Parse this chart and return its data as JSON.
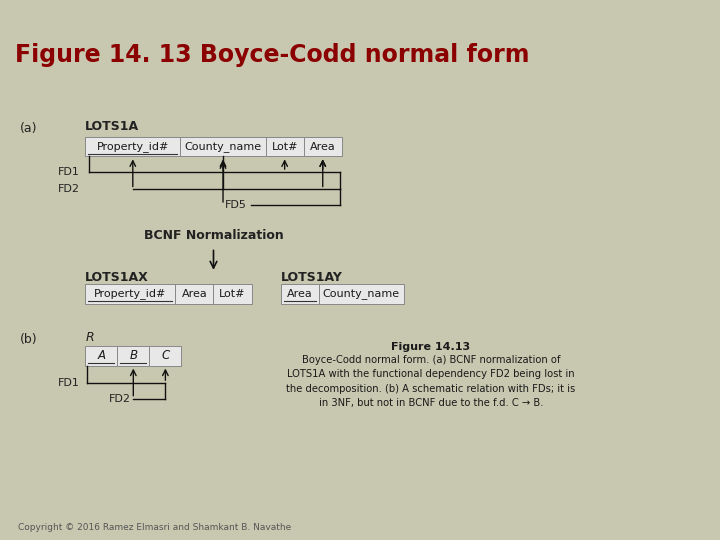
{
  "title": "Figure 14. 13 Boyce-Codd normal form",
  "title_bg": "#c8c8b0",
  "title_color": "#8b0000",
  "main_bg": "#ffffff",
  "fig_bg": "#c8c8b0",
  "section_a_label": "(a)",
  "lots1a_label": "LOTS1A",
  "cols_lots1a": [
    "Property_id#",
    "County_name",
    "Lot#",
    "Area"
  ],
  "fd1_label": "FD1",
  "fd2_label": "FD2",
  "fd5_label": "FD5",
  "bcnf_label": "BCNF Normalization",
  "lots1ax_label": "LOTS1AX",
  "cols_lots1ax": [
    "Property_id#",
    "Area",
    "Lot#"
  ],
  "lots1ay_label": "LOTS1AY",
  "cols_lots1ay": [
    "Area",
    "County_name"
  ],
  "section_b_label": "(b)",
  "r_label": "R",
  "cols_r": [
    "A",
    "B",
    "C"
  ],
  "fd1b_label": "FD1",
  "fd2b_label": "FD2",
  "caption_title": "Figure 14.13",
  "caption_body": "Boyce-Codd normal form. (a) BCNF normalization of\nLOTS1A with the functional dependency FD2 being lost in\nthe decomposition. (b) A schematic relation with FDs; it is\nin 3NF, but not in BCNF due to the f.d. C → B.",
  "copyright": "Copyright © 2016 Ramez Elmasri and Shamkant B. Navathe",
  "box_fill": "#e8e8e8",
  "box_edge": "#888888",
  "arrow_color": "#111111",
  "darkred_bar": "#7a0000"
}
